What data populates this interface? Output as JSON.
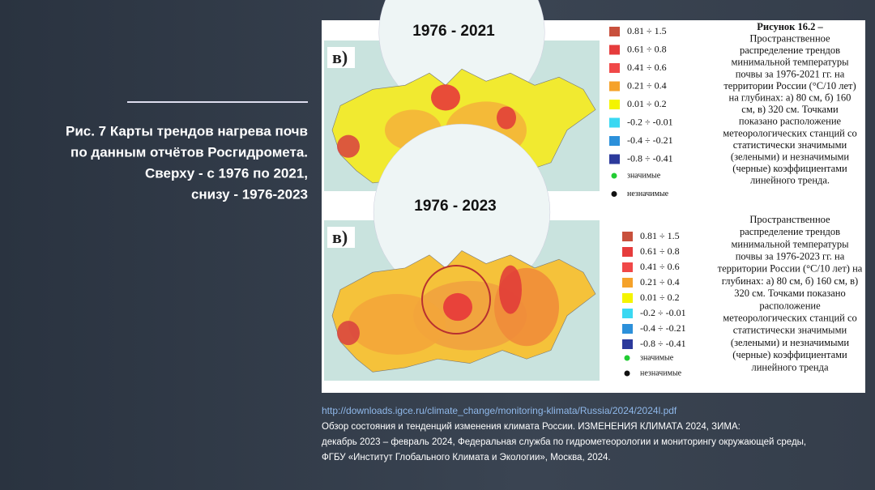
{
  "caption": [
    "Рис. 7 Карты трендов нагрева почв",
    "по данным отчётов Росгидромета.",
    "Сверху  - с 1976 по 2021,",
    "снизу - 1976-2023"
  ],
  "figure": {
    "top": {
      "title": "1976 - 2021",
      "label": "в)",
      "legend": [
        {
          "label": "0.81 ÷ 1.5",
          "color": "#c8503c"
        },
        {
          "label": "0.61 ÷ 0.8",
          "color": "#e63c3c"
        },
        {
          "label": "0.41 ÷ 0.6",
          "color": "#f04848"
        },
        {
          "label": "0.21 ÷ 0.4",
          "color": "#f5a22a"
        },
        {
          "label": "0.01 ÷ 0.2",
          "color": "#f4f400"
        },
        {
          "label": "-0.2 ÷ -0.01",
          "color": "#3ad8f2"
        },
        {
          "label": "-0.4 ÷ -0.21",
          "color": "#2c90da"
        },
        {
          "label": "-0.8 ÷ -0.41",
          "color": "#2c3a9c"
        }
      ],
      "markers": [
        {
          "label": "значимые",
          "color": "#22cc33"
        },
        {
          "label": "незначимые",
          "color": "#111111"
        }
      ],
      "description": [
        "Рисунок 16.2 –",
        "Пространственное",
        "распределение трендов",
        "минимальной температуры",
        "почвы за 1976-2021 гг. на",
        "территории России (°С/10 лет)",
        "на глубинах: а) 80 см, б) 160",
        "см, в) 320 см. Точками",
        "показано расположение",
        "метеорологических станций со",
        "статистически значимыми",
        "(зелеными) и незначимыми",
        "(черные) коэффициентами",
        "линейного тренда."
      ]
    },
    "bottom": {
      "title": "1976 - 2023",
      "label": "в)",
      "legend": [
        {
          "label": "0.81 ÷ 1.5",
          "color": "#c8503c"
        },
        {
          "label": "0.61 ÷ 0.8",
          "color": "#e63c3c"
        },
        {
          "label": "0.41 ÷ 0.6",
          "color": "#f04848"
        },
        {
          "label": "0.21 ÷ 0.4",
          "color": "#f5a22a"
        },
        {
          "label": "0.01 ÷ 0.2",
          "color": "#f4f400"
        },
        {
          "label": "-0.2 ÷ -0.01",
          "color": "#3ad8f2"
        },
        {
          "label": "-0.4 ÷ -0.21",
          "color": "#2c90da"
        },
        {
          "label": "-0.8 ÷ -0.41",
          "color": "#2c3a9c"
        }
      ],
      "markers": [
        {
          "label": "значимые",
          "color": "#22cc33"
        },
        {
          "label": "незначимые",
          "color": "#111111"
        }
      ],
      "description": [
        "Пространственное",
        "распределение трендов",
        "минимальной температуры",
        "почвы за 1976-2023 гг. на",
        "территории России (°С/10 лет) на",
        "глубинах: а) 80 см, б) 160 см, в)",
        "320 см. Точками показано",
        "расположение",
        "метеорологических станций со",
        "статистически значимыми",
        "(зелеными) и незначимыми",
        "(черные) коэффициентами",
        "линейного тренда"
      ]
    }
  },
  "footer": {
    "url": "http://downloads.igce.ru/climate_change/monitoring-klimata/Russia/2024/2024l.pdf",
    "lines": [
      "Обзор состояния и тенденций изменения климата России. ИЗМЕНЕНИЯ КЛИМАТА 2024, ЗИМА:",
      "декабрь 2023 – февраль 2024, Федеральная служба по гидрометеорологии и мониторингу окружающей среды,",
      "ФГБУ «Институт Глобального Климата и Экологии», Москва, 2024."
    ]
  }
}
